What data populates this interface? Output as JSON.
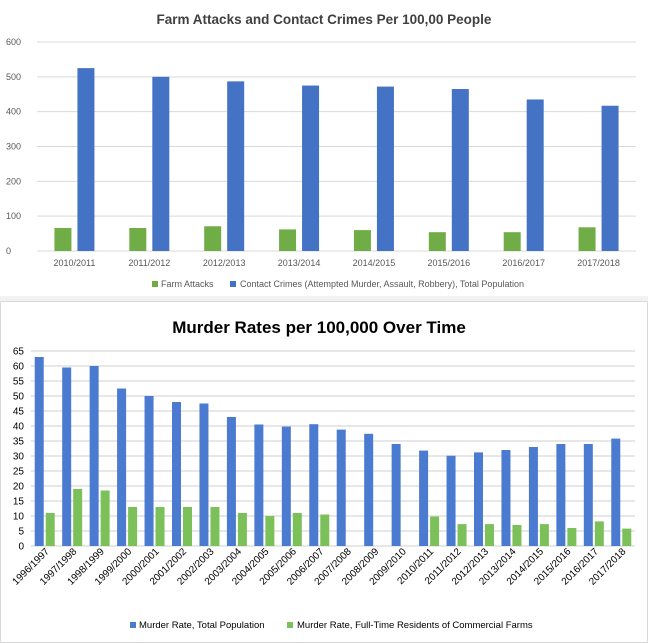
{
  "colors": {
    "farm_attacks": "#70ad47",
    "contact_crimes": "#4472c4",
    "murder_total": "#4a7bd0",
    "murder_farms": "#7cc05a"
  },
  "chart_data": [
    {
      "type": "bar",
      "title": "Farm Attacks and Contact Crimes Per 100,00 People",
      "categories": [
        "2010/2011",
        "2011/2012",
        "2012/2013",
        "2013/2014",
        "2014/2015",
        "2015/2016",
        "2016/2017",
        "2017/2018"
      ],
      "series": [
        {
          "name": "Farm Attacks",
          "values": [
            66,
            66,
            71,
            62,
            60,
            54,
            54,
            68
          ]
        },
        {
          "name": "Contact Crimes (Attempted Murder, Assault, Robbery), Total Population",
          "values": [
            525,
            500,
            487,
            475,
            472,
            465,
            435,
            417
          ]
        }
      ],
      "ylim": [
        0,
        600
      ],
      "yticks": [
        "0",
        "100",
        "200",
        "300",
        "400",
        "500",
        "600"
      ],
      "grid": true,
      "legend": "bottom"
    },
    {
      "type": "bar",
      "title": "Murder Rates per 100,000 Over Time",
      "categories": [
        "1996/1997",
        "1997/1998",
        "1998/1999",
        "1999/2000",
        "2000/2001",
        "2001/2002",
        "2002/2003",
        "2003/2004",
        "2004/2005",
        "2005/2006",
        "2006/2007",
        "2007/2008",
        "2008/2009",
        "2009/2010",
        "2010/2011",
        "2011/2012",
        "2012/2013",
        "2013/2014",
        "2014/2015",
        "2015/2016",
        "2016/2017",
        "2017/2018"
      ],
      "series": [
        {
          "name": "Murder Rate, Total Population",
          "values": [
            63,
            59.5,
            60,
            52.5,
            50,
            48,
            47.5,
            43,
            40.5,
            39.8,
            40.6,
            38.8,
            37.4,
            34,
            31.8,
            30.1,
            31.2,
            32,
            33,
            34,
            34,
            35.8
          ]
        },
        {
          "name": "Murder Rate, Full-Time Residents of Commercial Farms",
          "values": [
            11,
            19,
            18.5,
            13,
            13,
            13,
            13,
            11,
            10,
            11,
            10.5,
            null,
            null,
            null,
            9.8,
            7.3,
            7.3,
            7,
            7.3,
            6,
            8.2,
            5.8
          ]
        }
      ],
      "ylim": [
        0,
        65
      ],
      "yticks": [
        "0",
        "5",
        "10",
        "15",
        "20",
        "25",
        "30",
        "35",
        "40",
        "45",
        "50",
        "55",
        "60",
        "65"
      ],
      "grid": true,
      "legend": "bottom"
    }
  ]
}
